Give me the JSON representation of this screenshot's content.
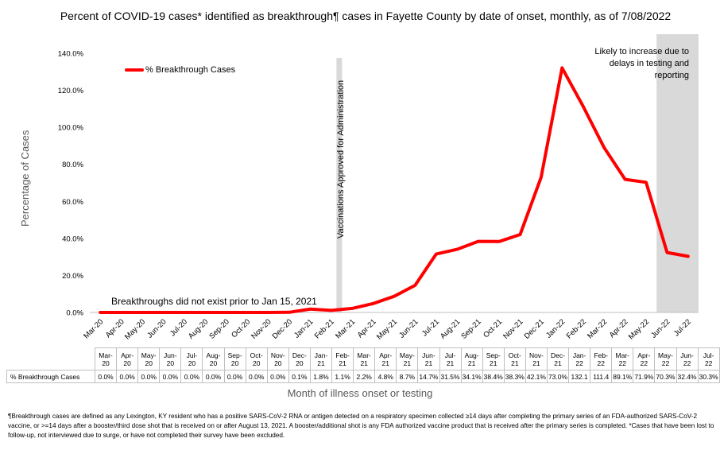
{
  "chart_data": {
    "type": "line",
    "title": "Percent of COVID-19 cases* identified as breakthrough¶ cases in Fayette County by date of onset, monthly, as of 7/08/2022",
    "xlabel": "Month of illness onset or testing",
    "ylabel": "Percentage of Cases",
    "ylim": [
      0,
      140
    ],
    "yticks": [
      "0.0%",
      "20.0%",
      "40.0%",
      "60.0%",
      "80.0%",
      "100.0%",
      "120.0%",
      "140.0%"
    ],
    "categories": [
      "Mar-20",
      "Apr-20",
      "May-20",
      "Jun-20",
      "Jul-20",
      "Aug-20",
      "Sep-20",
      "Oct-20",
      "Nov-20",
      "Dec-20",
      "Jan-21",
      "Feb-21",
      "Mar-21",
      "Apr-21",
      "May-21",
      "Jun-21",
      "Jul-21",
      "Aug-21",
      "Sep-21",
      "Oct-21",
      "Nov-21",
      "Dec-21",
      "Jan-22",
      "Feb-22",
      "Mar-22",
      "Apr-22",
      "May-22",
      "Jun-22",
      "Jul-22"
    ],
    "table_categories": [
      [
        "Mar-",
        "20"
      ],
      [
        "Apr-",
        "20"
      ],
      [
        "May-",
        "20"
      ],
      [
        "Jun-",
        "20"
      ],
      [
        "Jul-",
        "20"
      ],
      [
        "Aug-",
        "20"
      ],
      [
        "Sep-",
        "20"
      ],
      [
        "Oct-",
        "20"
      ],
      [
        "Nov-",
        "20"
      ],
      [
        "Dec-",
        "20"
      ],
      [
        "Jan-",
        "21"
      ],
      [
        "Feb-",
        "21"
      ],
      [
        "Mar-",
        "21"
      ],
      [
        "Apr-",
        "21"
      ],
      [
        "May-",
        "21"
      ],
      [
        "Jun-",
        "21"
      ],
      [
        "Jul-",
        "21"
      ],
      [
        "Aug-",
        "21"
      ],
      [
        "Sep-",
        "21"
      ],
      [
        "Oct-",
        "21"
      ],
      [
        "Nov-",
        "21"
      ],
      [
        "Dec-",
        "21"
      ],
      [
        "Jan-",
        "22"
      ],
      [
        "Feb-",
        "22"
      ],
      [
        "Mar-",
        "22"
      ],
      [
        "Apr-",
        "22"
      ],
      [
        "May-",
        "22"
      ],
      [
        "Jun-",
        "22"
      ],
      [
        "Jul-",
        "22"
      ]
    ],
    "series": [
      {
        "name": "% Breakthrough Cases",
        "color": "#ff0000",
        "values": [
          0.0,
          0.0,
          0.0,
          0.0,
          0.0,
          0.0,
          0.0,
          0.0,
          0.0,
          0.1,
          1.8,
          1.1,
          2.2,
          4.8,
          8.7,
          14.7,
          31.5,
          34.1,
          38.4,
          38.3,
          42.1,
          73.0,
          132.1,
          111.4,
          89.1,
          71.9,
          70.3,
          32.4,
          30.3
        ],
        "labels": [
          "0.0%",
          "0.0%",
          "0.0%",
          "0.0%",
          "0.0%",
          "0.0%",
          "0.0%",
          "0.0%",
          "0.0%",
          "0.1%",
          "1.8%",
          "1.1%",
          "2.2%",
          "4.8%",
          "8.7%",
          "14.7%",
          "31.5%",
          "34.1%",
          "38.4%",
          "38.3%",
          "42.1%",
          "73.0%",
          "132.1",
          "111.4",
          "89.1%",
          "71.9%",
          "70.3%",
          "32.4%",
          "30.3%"
        ]
      }
    ],
    "legend": "top-left",
    "table_row_label": "% Breakthrough Cases",
    "annotations": {
      "vaccination": "Vaccinations Approved for Administration",
      "pre": "Breakthroughs did not exist prior to Jan 15, 2021",
      "shade": "Likely to increase due to delays in testing and reporting"
    },
    "grid": false
  },
  "footnote": "¶Breakthrough cases are defined as any Lexington, KY resident who has a positive SARS-CoV-2 RNA or antigen detected on a respiratory specimen collected ≥14 days after completing the primary series of an FDA-authorized SARS-CoV-2 vaccine, or >=14 days after a booster/third dose shot that is received on or after August 13, 2021.  A booster/additional shot is any FDA authorized vaccine product that is received after the primary series is completed. *Cases that have been lost to follow-up, not interviewed due to surge, or have not completed their survey have been excluded.",
  "colors": {
    "line": "#ff0000",
    "shade": "#d9d9d9",
    "axis": "#bfbfbf"
  }
}
